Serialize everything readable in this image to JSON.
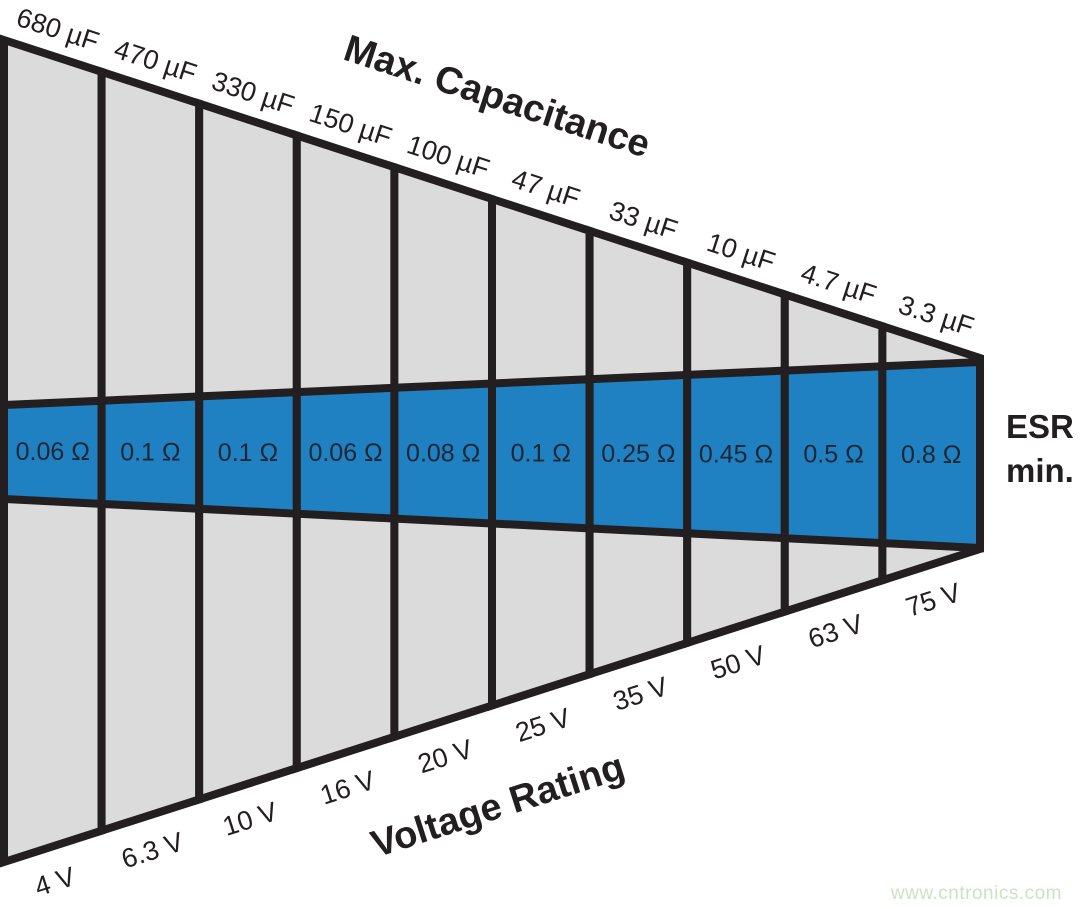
{
  "titles": {
    "capacitance_axis": "Max. Capacitance",
    "voltage_axis": "Voltage Rating",
    "esr_line1": "ESR",
    "esr_line2": "min."
  },
  "watermark": "www.cntronics.com",
  "colors": {
    "band_blue": "#1f80c2",
    "cell_gray": "#dbdbdb",
    "line_black": "#231f20",
    "esr_text": "#1d2733",
    "watermark_green": "#cbe3c0"
  },
  "chart_data": {
    "type": "table",
    "title": "Max. Capacitance / ESR min. / Voltage Rating wedge diagram",
    "columns": [
      {
        "capacitance": "680 µF",
        "esr": "0.06 Ω",
        "voltage": "4 V"
      },
      {
        "capacitance": "470 µF",
        "esr": "0.1 Ω",
        "voltage": "6.3 V"
      },
      {
        "capacitance": "330 µF",
        "esr": "0.1 Ω",
        "voltage": "10 V"
      },
      {
        "capacitance": "150 µF",
        "esr": "0.06 Ω",
        "voltage": "16 V"
      },
      {
        "capacitance": "100 µF",
        "esr": "0.08 Ω",
        "voltage": "20 V"
      },
      {
        "capacitance": "47 µF",
        "esr": "0.1 Ω",
        "voltage": "25 V"
      },
      {
        "capacitance": "33 µF",
        "esr": "0.25 Ω",
        "voltage": "35 V"
      },
      {
        "capacitance": "10 µF",
        "esr": "0.45 Ω",
        "voltage": "50 V"
      },
      {
        "capacitance": "4.7 µF",
        "esr": "0.5 Ω",
        "voltage": "63 V"
      },
      {
        "capacitance": "3.3 µF",
        "esr": "0.8 Ω",
        "voltage": "75 V"
      }
    ]
  }
}
